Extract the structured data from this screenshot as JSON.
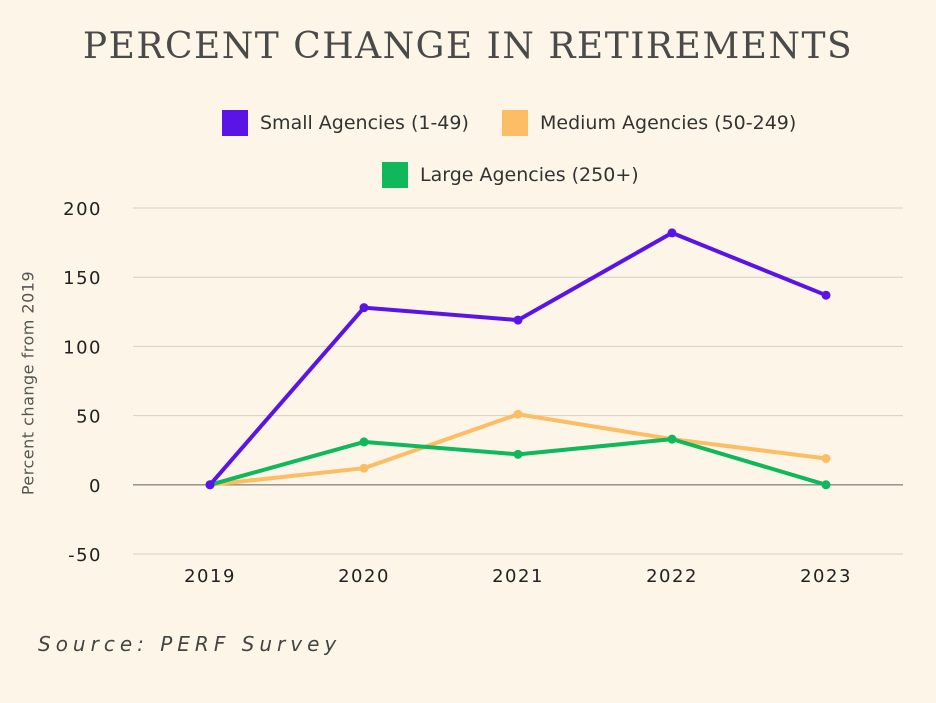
{
  "title": "PERCENT CHANGE IN RETIREMENTS",
  "source": "Source: PERF Survey",
  "chart_data": {
    "type": "line",
    "title": "PERCENT CHANGE IN RETIREMENTS",
    "xlabel": "",
    "ylabel": "Percent change from 2019",
    "categories": [
      "2019",
      "2020",
      "2021",
      "2022",
      "2023"
    ],
    "ylim": [
      -50,
      200
    ],
    "yticks": [
      -50,
      0,
      50,
      100,
      150,
      200
    ],
    "grid": true,
    "legend_position": "top",
    "series": [
      {
        "name": "Small Agencies (1-49)",
        "color": "#5b14e6",
        "values": [
          0,
          128,
          119,
          182,
          137
        ]
      },
      {
        "name": "Medium Agencies (50-249)",
        "color": "#fcbd64",
        "values": [
          0,
          12,
          51,
          33,
          19
        ]
      },
      {
        "name": "Large Agencies (250+)",
        "color": "#10b85c",
        "values": [
          0,
          31,
          22,
          33,
          0
        ]
      }
    ]
  }
}
